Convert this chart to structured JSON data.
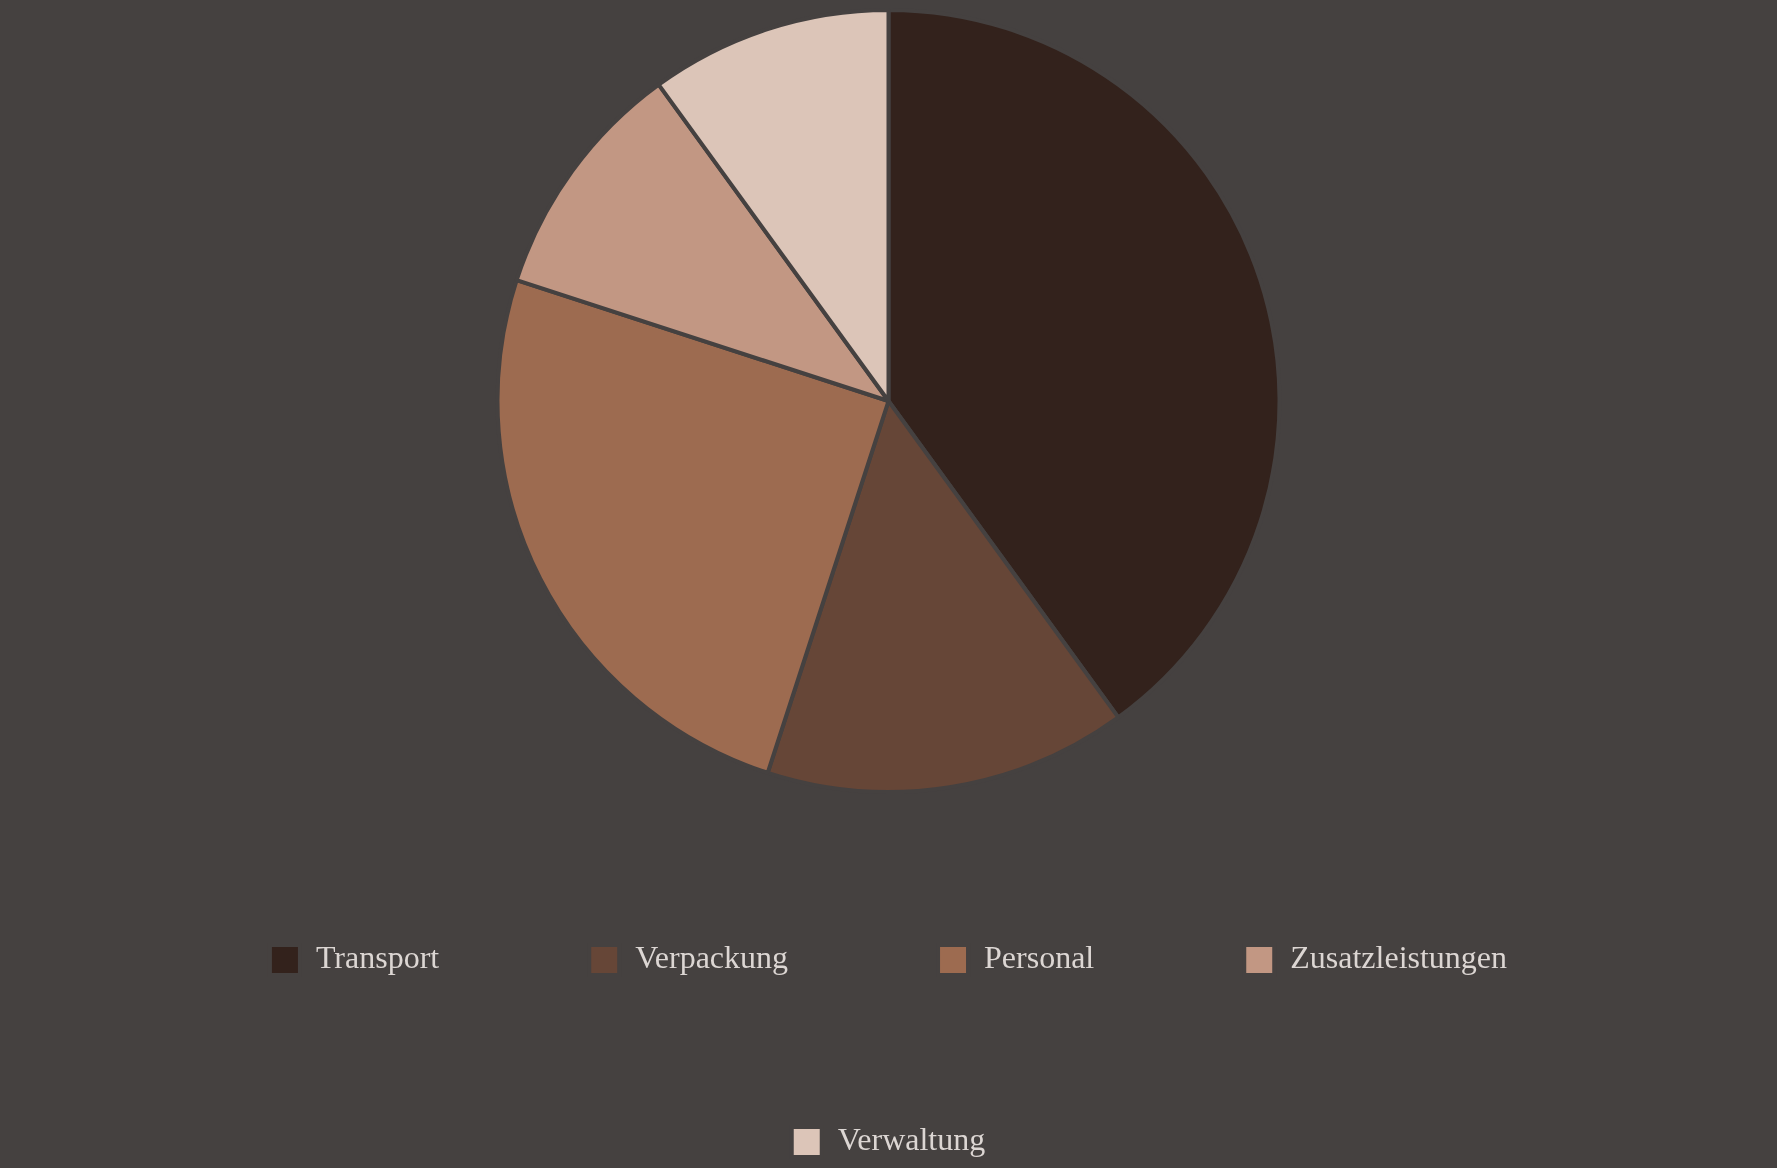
{
  "chart_data": {
    "type": "pie",
    "categories": [
      "Transport",
      "Verpackung",
      "Personal",
      "Zusatzleistungen",
      "Verwaltung"
    ],
    "values": [
      40,
      15,
      25,
      10,
      10
    ],
    "colors": [
      "#33221c",
      "#664637",
      "#9d6b50",
      "#c29783",
      "#dcc5b8"
    ],
    "legend": "bottom"
  }
}
